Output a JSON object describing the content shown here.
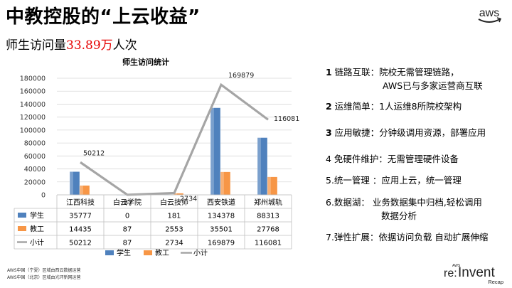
{
  "slide": {
    "title": "中教控股的“上云收益”",
    "subtitle_prefix": "师生访问量",
    "subtitle_highlight": "33.89万",
    "subtitle_suffix": "人次"
  },
  "logos": {
    "aws": "aws",
    "reinvent_small": "AWS",
    "reinvent_re": "re:",
    "reinvent_main": "Invent",
    "reinvent_recap": "Recap"
  },
  "chart_data": {
    "type": "bar",
    "title": "师生访问统计",
    "categories": [
      "江西科技",
      "白云学院",
      "白云技师",
      "西安铁道",
      "郑州城轨"
    ],
    "ylim": [
      0,
      180000
    ],
    "yticks": [
      "0",
      "20000",
      "40000",
      "60000",
      "80000",
      "100000",
      "120000",
      "140000",
      "160000",
      "180000"
    ],
    "series": [
      {
        "name": "学生",
        "type": "bar",
        "values": [
          35777,
          0,
          181,
          134378,
          88313
        ],
        "color": "#4f81bd"
      },
      {
        "name": "教工",
        "type": "bar",
        "values": [
          14435,
          87,
          2553,
          35501,
          27768
        ],
        "color": "#f79646"
      },
      {
        "name": "小计",
        "type": "line",
        "values": [
          50212,
          87,
          2734,
          169879,
          116081
        ],
        "color": "#a5a5a5"
      }
    ],
    "line_labels": [
      "50212",
      "87",
      "2734",
      "169879",
      "116081"
    ],
    "table_values": [
      [
        "35777",
        "0",
        "181",
        "134378",
        "88313"
      ],
      [
        "14435",
        "87",
        "2553",
        "35501",
        "27768"
      ],
      [
        "50212",
        "87",
        "2734",
        "169879",
        "116081"
      ]
    ],
    "legend": [
      "学生",
      "教工",
      "小计"
    ],
    "legend_position": "bottom",
    "grid": true
  },
  "features": [
    {
      "num": "1",
      "text": " 链路互联：院校无需管理链路，",
      "cont": "AWS已与多家运营商互联"
    },
    {
      "num": "2",
      "text": " 运维简单：1人运维8所院校架构"
    },
    {
      "num": "3",
      "text": " 应用敏捷：分钟级调用资源，部署应用"
    },
    {
      "num": "",
      "text": "4 免硬件维护：无需管理硬件设备"
    },
    {
      "num": "",
      "text": "5.统一管理 ：应用上云，统一管理"
    },
    {
      "num": "",
      "text": "6.数据湖：  业务数据集中归档,轻松调用",
      "cont": "数据分析"
    },
    {
      "num": "",
      "text": "7.弹性扩展：依据访问负载 自动扩展伸缩"
    }
  ],
  "footnotes": [
    "AWS中国（宁夏）区域由西云数据运营",
    "AWS中国（北京）区域由光环新网运营"
  ]
}
